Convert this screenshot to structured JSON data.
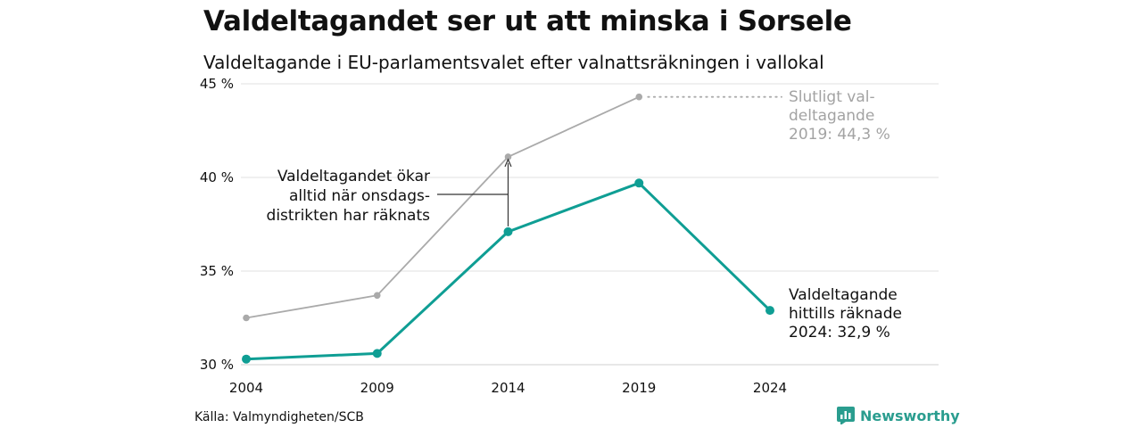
{
  "title": "Valdeltagandet ser ut att minska i Sorsele",
  "subtitle": "Valdeltagande i EU-parlamentsvalet efter valnattsräkningen i vallokal",
  "source": "Källa: Valmyndigheten/SCB",
  "brand": {
    "name": "Newsworthy",
    "icon": "newsworthy-logo-icon",
    "color": "#2a9d8f"
  },
  "chart_data": {
    "type": "line",
    "x": [
      2004,
      2009,
      2014,
      2019,
      2024
    ],
    "ylim": [
      30,
      45
    ],
    "yticks": [
      30,
      35,
      40,
      45
    ],
    "ytick_labels": [
      "30 %",
      "35 %",
      "40 %",
      "45 %"
    ],
    "xtick_labels": [
      "2004",
      "2009",
      "2014",
      "2019",
      "2024"
    ],
    "grid": true,
    "series": [
      {
        "key": "final",
        "values": [
          32.5,
          33.7,
          41.1,
          44.3,
          null
        ],
        "color": "#aaaaaa"
      },
      {
        "key": "election_night",
        "values": [
          30.3,
          30.6,
          37.1,
          39.7,
          32.9
        ],
        "color": "#0f9e94"
      }
    ],
    "annotations": {
      "final_label": [
        "Slutligt val-",
        "deltagande",
        "2019: 44,3 %"
      ],
      "current_label": [
        "Valdeltagande",
        "hittills räknade",
        "2024: 32,9 %"
      ],
      "wednesday_note": [
        "Valdeltagandet ökar",
        "alltid när onsdags-",
        "distrikten har räknats"
      ]
    }
  }
}
